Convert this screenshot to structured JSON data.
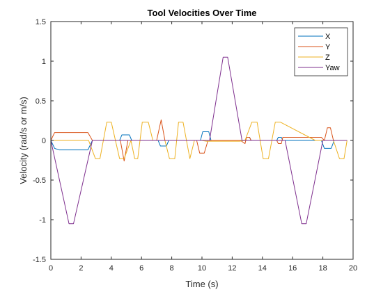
{
  "chart_data": {
    "type": "line",
    "title": "Tool Velocities Over Time",
    "xlabel": "Time (s)",
    "ylabel": "Velocity (rad/s or m/s)",
    "xlim": [
      0,
      20
    ],
    "ylim": [
      -1.5,
      1.5
    ],
    "xticks": [
      0,
      2,
      4,
      6,
      8,
      10,
      12,
      14,
      16,
      18,
      20
    ],
    "yticks": [
      -1.5,
      -1,
      -0.5,
      0,
      0.5,
      1,
      1.5
    ],
    "xtick_labels": [
      "0",
      "2",
      "4",
      "6",
      "8",
      "10",
      "12",
      "14",
      "16",
      "18",
      "20"
    ],
    "ytick_labels": [
      "-1.5",
      "-1",
      "-0.5",
      "0",
      "0.5",
      "1",
      "1.5"
    ],
    "grid": false,
    "legend_position": "top-right",
    "series": [
      {
        "name": "X",
        "color": "#0072BD",
        "x": [
          0,
          0.25,
          0.55,
          2.45,
          2.75,
          4.55,
          4.7,
          5.2,
          5.35,
          7.1,
          7.25,
          7.65,
          7.8,
          9.9,
          10.05,
          10.45,
          10.6,
          12.85,
          12.95,
          13.15,
          13.25,
          14.95,
          15.05,
          15.25,
          15.35,
          17.9,
          18.1,
          18.55,
          18.75,
          19.6
        ],
        "y": [
          0,
          -0.1,
          -0.12,
          -0.12,
          0,
          0,
          0.07,
          0.07,
          0,
          0,
          -0.07,
          -0.07,
          0,
          0,
          0.11,
          0.11,
          0,
          0,
          0.04,
          0.04,
          0,
          0,
          0.04,
          0.04,
          0,
          0,
          -0.1,
          -0.1,
          0,
          0
        ]
      },
      {
        "name": "Y",
        "color": "#D95319",
        "x": [
          0,
          0.25,
          2.45,
          2.75,
          4.6,
          4.85,
          5.1,
          7.0,
          7.3,
          7.55,
          9.65,
          9.85,
          10.15,
          10.4,
          12.55,
          12.85,
          12.95,
          13.15,
          13.25,
          14.95,
          15.05,
          15.25,
          15.35,
          17.9,
          18.1,
          18.3,
          18.5,
          18.7,
          19.6
        ],
        "y": [
          0,
          0.1,
          0.1,
          0,
          0,
          -0.26,
          0,
          0,
          0.26,
          0,
          0,
          -0.16,
          -0.16,
          0,
          0,
          -0.04,
          0.04,
          0.04,
          0,
          0,
          -0.04,
          -0.04,
          0.04,
          0.04,
          0,
          0.16,
          0.16,
          0,
          0
        ]
      },
      {
        "name": "Z",
        "color": "#EDB120",
        "x": [
          0,
          2.5,
          2.95,
          3.25,
          3.7,
          4.0,
          4.55,
          4.85,
          5.3,
          5.55,
          5.75,
          6.05,
          6.45,
          6.75,
          7.25,
          7.55,
          7.85,
          8.2,
          8.45,
          8.75,
          9.2,
          9.5,
          9.95,
          10.3,
          12.5,
          12.85,
          13.3,
          13.65,
          14.05,
          14.4,
          14.85,
          15.2,
          17.5,
          17.9,
          18.3,
          18.7,
          19.1,
          19.4,
          19.6
        ],
        "y": [
          0,
          0,
          -0.23,
          -0.23,
          0.23,
          0.23,
          -0.23,
          -0.23,
          0,
          -0.23,
          -0.23,
          0.23,
          0.23,
          0,
          0,
          0,
          -0.23,
          -0.23,
          0.23,
          0.23,
          -0.23,
          0,
          0,
          -0.01,
          -0.01,
          0,
          0.23,
          0.23,
          -0.23,
          -0.23,
          0.23,
          0.23,
          0,
          0,
          0,
          0,
          -0.23,
          -0.23,
          0
        ]
      },
      {
        "name": "Yaw",
        "color": "#7E2F8E",
        "x": [
          0,
          1.2,
          1.5,
          2.75,
          10.5,
          11.4,
          11.7,
          12.65,
          15.5,
          16.6,
          16.9,
          18.0,
          19.6
        ],
        "y": [
          0,
          -1.05,
          -1.05,
          0,
          0,
          1.05,
          1.05,
          0,
          0,
          -1.05,
          -1.05,
          0,
          0
        ]
      }
    ]
  }
}
